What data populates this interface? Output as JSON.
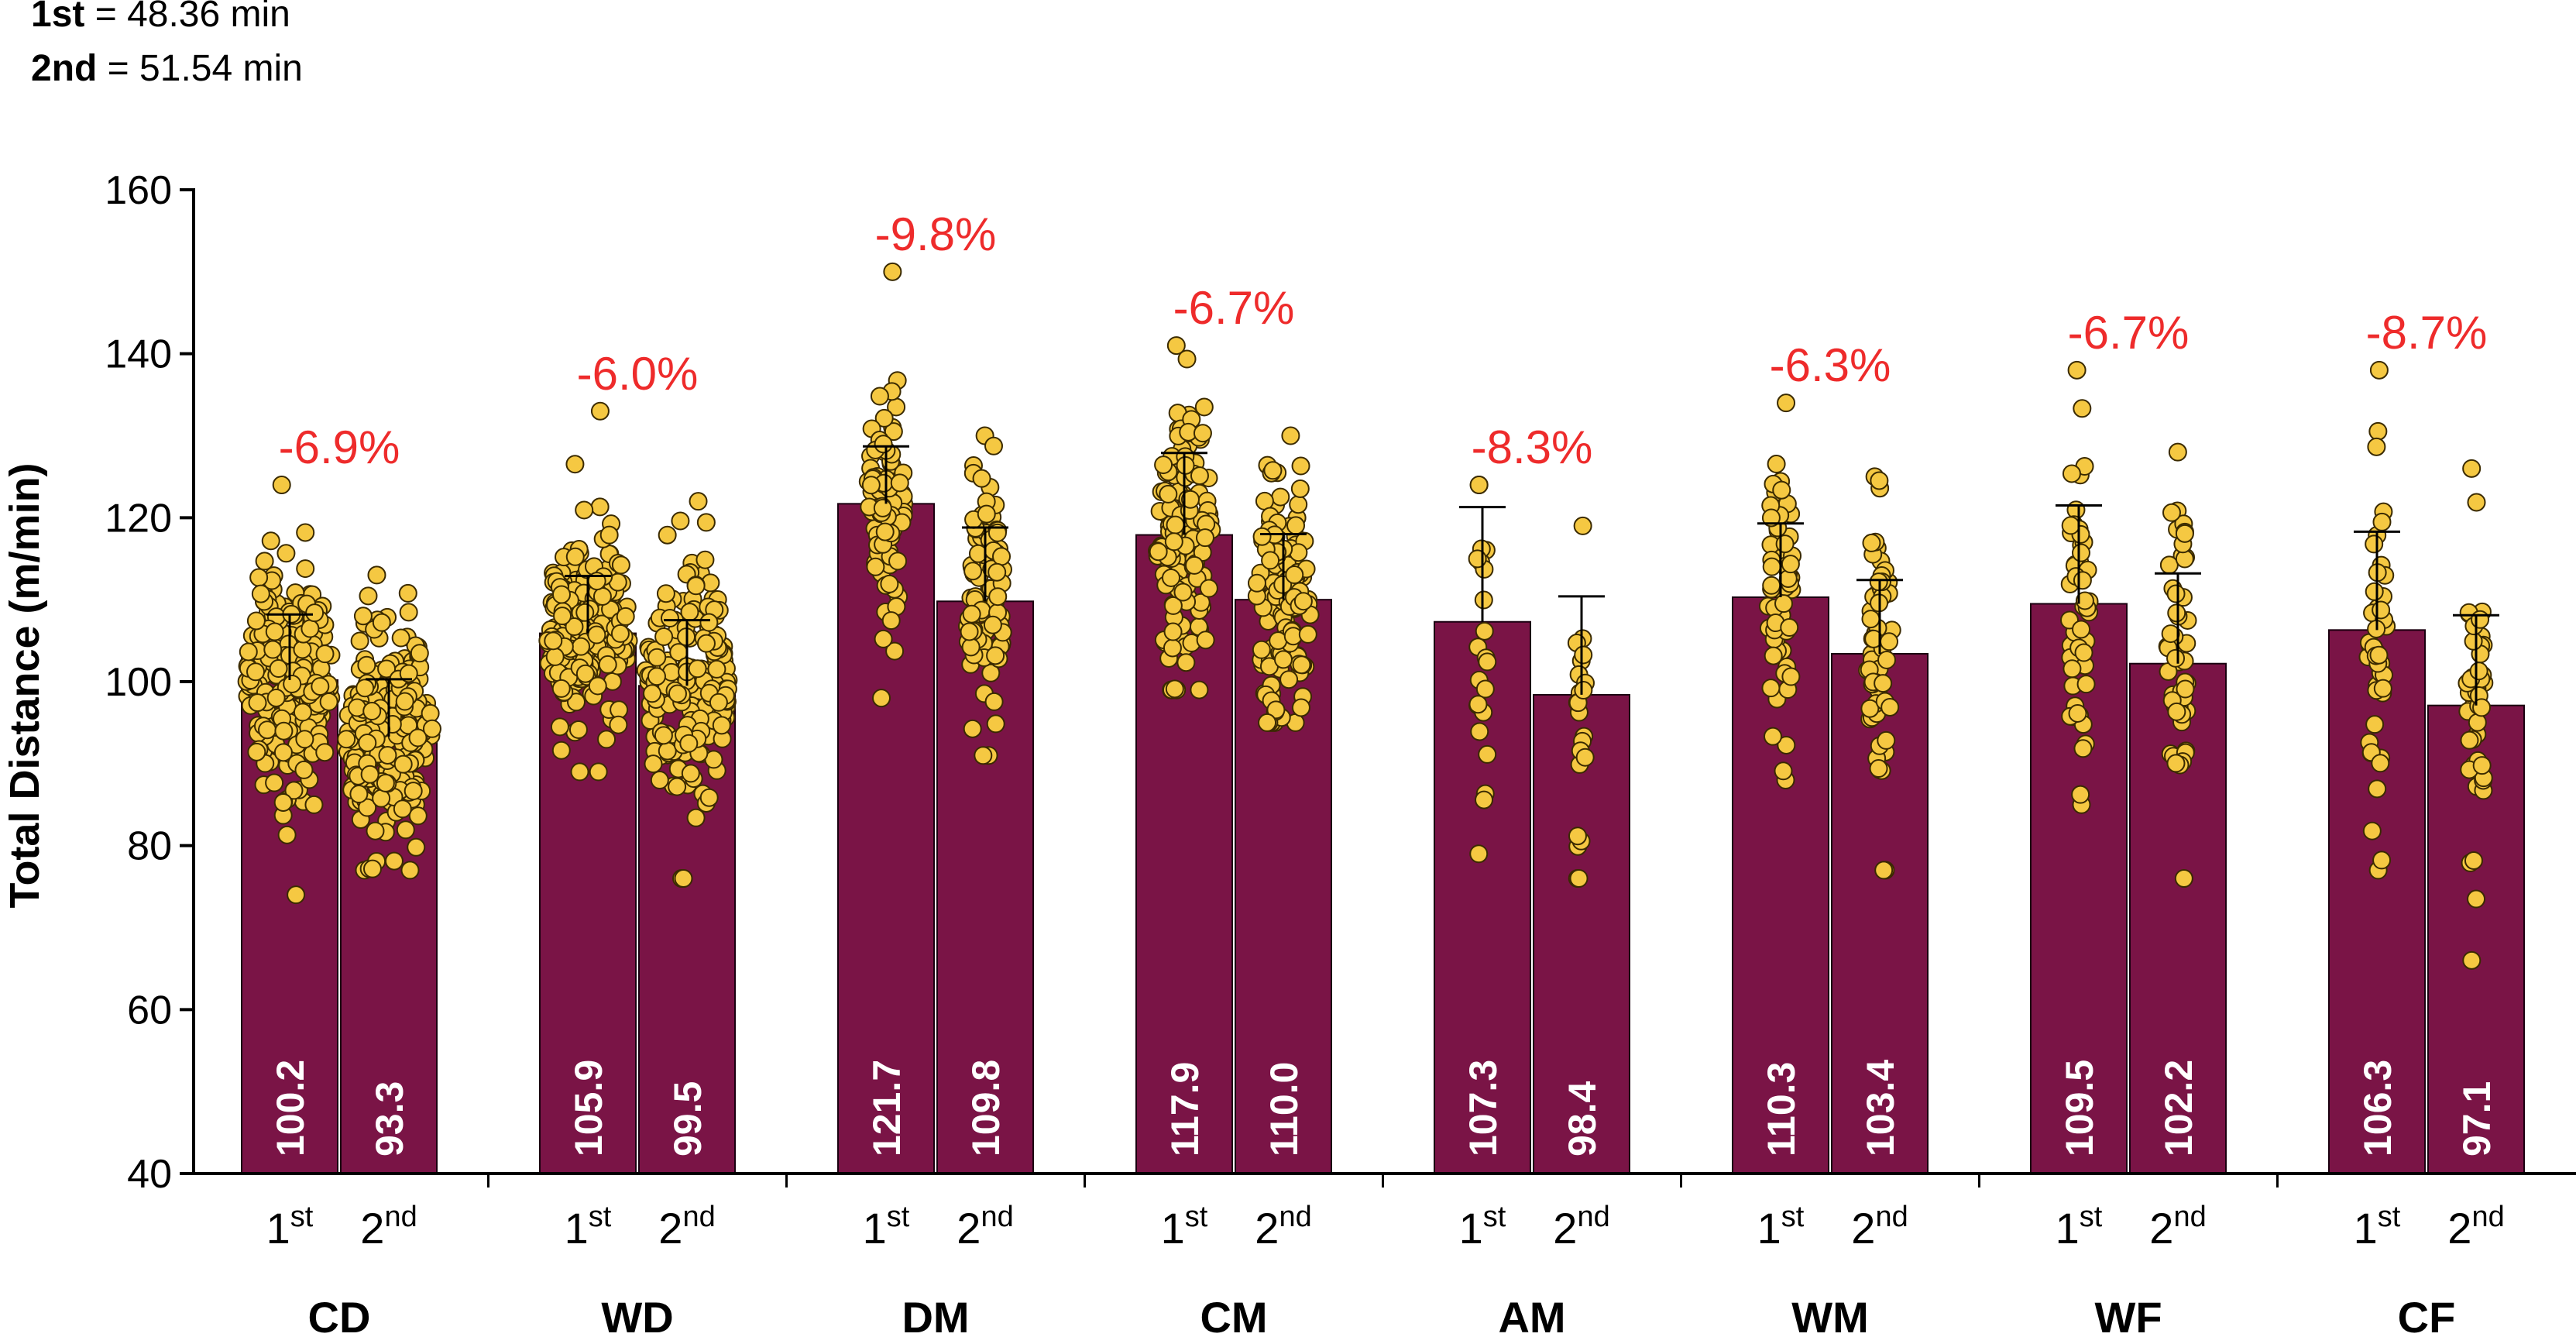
{
  "legend": [
    {
      "key": "1st",
      "value": " = 48.36 min"
    },
    {
      "key": "2nd",
      "value": " = 51.54 min"
    }
  ],
  "colors": {
    "bar": "#7a1446",
    "dot": "#f5c842",
    "pct": "#ee2b2b"
  },
  "chart_data": {
    "type": "bar",
    "title": "",
    "ylabel": "Total Distance (m/min)",
    "xlabel": "",
    "ylim": [
      40,
      160
    ],
    "yticks": [
      40,
      60,
      80,
      100,
      120,
      140,
      160
    ],
    "halves": [
      {
        "base": "1",
        "sup": "st"
      },
      {
        "base": "2",
        "sup": "nd"
      }
    ],
    "categories": [
      "CD",
      "WD",
      "DM",
      "CM",
      "AM",
      "WM",
      "WF",
      "CF"
    ],
    "series": [
      {
        "name": "1st",
        "values": [
          100.2,
          105.9,
          121.7,
          117.9,
          107.3,
          110.3,
          109.5,
          106.3
        ],
        "labels": [
          "100.2",
          "105.9",
          "121.7",
          "117.9",
          "107.3",
          "110.3",
          "109.5",
          "106.3"
        ],
        "sd": [
          8.0,
          7.0,
          7.0,
          10.0,
          14.0,
          9.0,
          12.0,
          12.0
        ],
        "ranges": [
          [
            74,
            124
          ],
          [
            89,
            133
          ],
          [
            98,
            150
          ],
          [
            99,
            141
          ],
          [
            79,
            124
          ],
          [
            88,
            134
          ],
          [
            85,
            138
          ],
          [
            77,
            138
          ]
        ],
        "n": [
          240,
          200,
          90,
          130,
          22,
          60,
          50,
          44
        ]
      },
      {
        "name": "2nd",
        "values": [
          93.3,
          99.5,
          109.8,
          110.0,
          98.4,
          103.4,
          102.2,
          97.1
        ],
        "labels": [
          "93.3",
          "99.5",
          "109.8",
          "110.0",
          "98.4",
          "103.4",
          "102.2",
          "97.1"
        ],
        "sd": [
          7.0,
          8.0,
          9.0,
          8.0,
          12.0,
          9.0,
          11.0,
          11.0
        ],
        "ranges": [
          [
            77,
            113
          ],
          [
            76,
            122
          ],
          [
            91,
            130
          ],
          [
            95,
            130
          ],
          [
            76,
            119
          ],
          [
            77,
            125
          ],
          [
            76,
            128
          ],
          [
            66,
            126
          ]
        ],
        "n": [
          240,
          200,
          90,
          130,
          22,
          60,
          50,
          44
        ]
      }
    ],
    "pct_change": [
      "-6.9%",
      "-6.0%",
      "-9.8%",
      "-6.7%",
      "-8.3%",
      "-6.3%",
      "-6.7%",
      "-8.7%"
    ]
  }
}
